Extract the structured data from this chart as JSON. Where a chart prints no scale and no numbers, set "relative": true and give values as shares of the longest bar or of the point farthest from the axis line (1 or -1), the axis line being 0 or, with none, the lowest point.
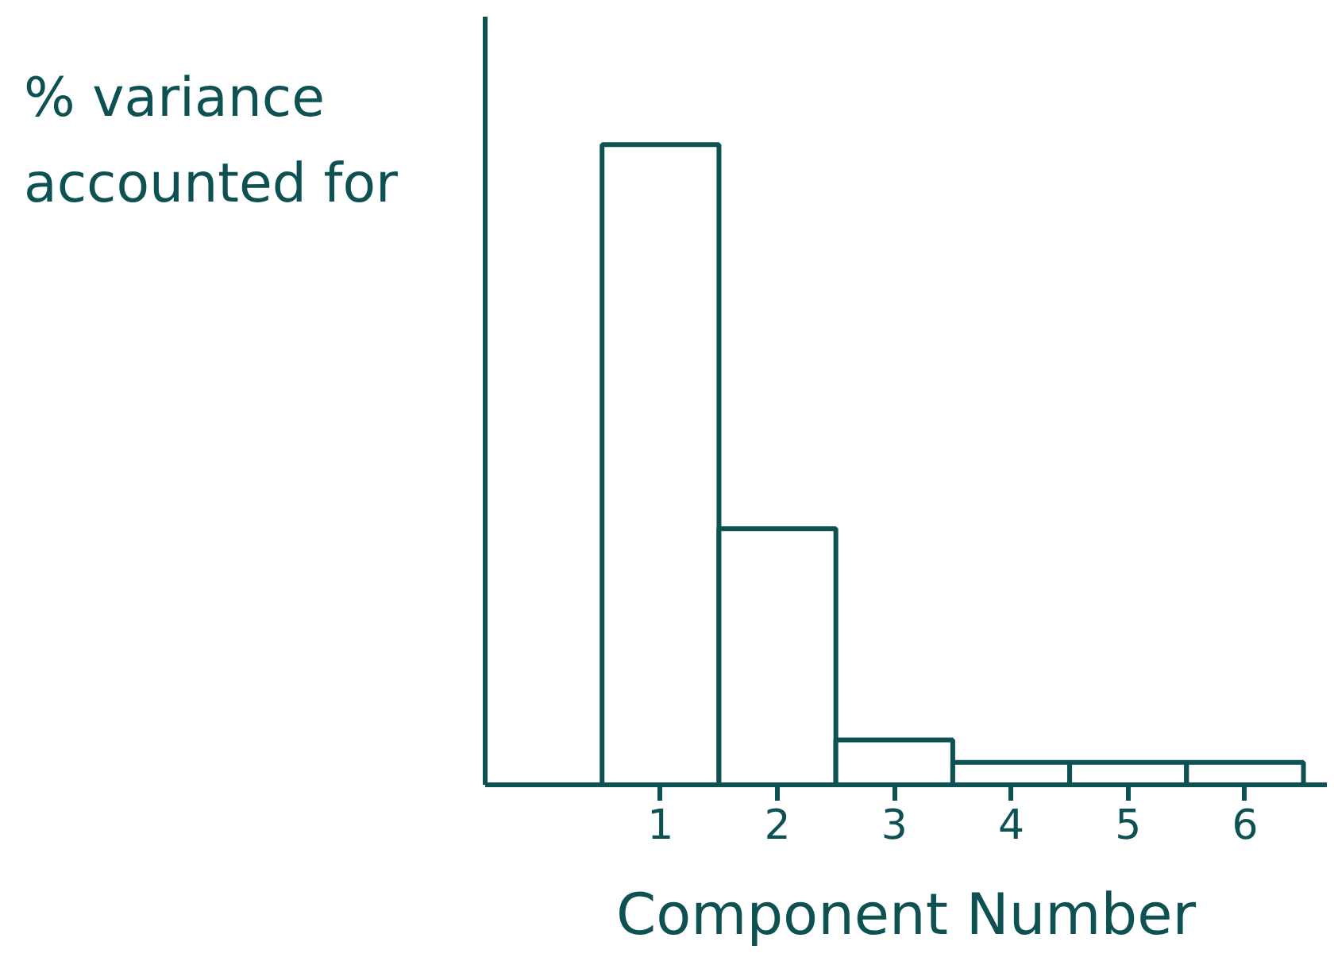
{
  "chart_data": {
    "type": "bar",
    "relative": true,
    "xlabel": "Component Number",
    "ylabel": "% variance accounted for",
    "categories": [
      "1",
      "2",
      "3",
      "4",
      "5",
      "6"
    ],
    "values": [
      1,
      0.4,
      0.07,
      0.035,
      0.035,
      0.035
    ],
    "color": "#ffffff",
    "grid": false
  }
}
